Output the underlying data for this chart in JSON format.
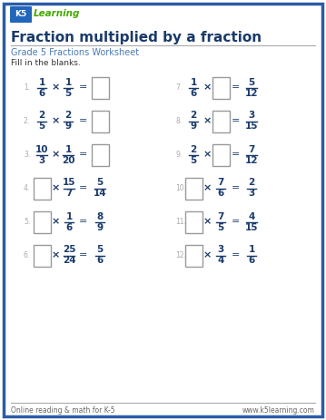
{
  "title": "Fraction multiplied by a fraction",
  "subtitle": "Grade 5 Fractions Worksheet",
  "instruction": "Fill in the blanks.",
  "border_color": "#2a5ca8",
  "title_color": "#1a3a6b",
  "subtitle_color": "#4a7ab5",
  "text_color": "#333333",
  "frac_color": "#1a3a6b",
  "box_color": "#999999",
  "footer_left": "Online reading & math for K-5",
  "footer_right": "www.k5learning.com",
  "problems": [
    {
      "num": "1",
      "col": 0,
      "row": 0,
      "expr": "frac_x_frac_eq_box",
      "n1": "1",
      "d1": "6",
      "n2": "1",
      "d2": "5"
    },
    {
      "num": "7",
      "col": 1,
      "row": 0,
      "expr": "frac_x_box_eq_frac",
      "n1": "1",
      "d1": "6",
      "nr": "5",
      "dr": "12"
    },
    {
      "num": "2",
      "col": 0,
      "row": 1,
      "expr": "frac_x_frac_eq_box",
      "n1": "2",
      "d1": "5",
      "n2": "2",
      "d2": "9"
    },
    {
      "num": "8",
      "col": 1,
      "row": 1,
      "expr": "frac_x_box_eq_frac",
      "n1": "2",
      "d1": "9",
      "nr": "3",
      "dr": "15"
    },
    {
      "num": "3",
      "col": 0,
      "row": 2,
      "expr": "frac_x_frac_eq_box",
      "n1": "10",
      "d1": "3",
      "n2": "1",
      "d2": "20"
    },
    {
      "num": "9",
      "col": 1,
      "row": 2,
      "expr": "frac_x_box_eq_frac",
      "n1": "2",
      "d1": "5",
      "nr": "7",
      "dr": "12"
    },
    {
      "num": "4",
      "col": 0,
      "row": 3,
      "expr": "box_x_frac_eq_frac",
      "n2": "15",
      "d2": "7",
      "nr": "5",
      "dr": "14"
    },
    {
      "num": "10",
      "col": 1,
      "row": 3,
      "expr": "box_x_frac_eq_frac",
      "n2": "7",
      "d2": "6",
      "nr": "2",
      "dr": "3"
    },
    {
      "num": "5",
      "col": 0,
      "row": 4,
      "expr": "box_x_frac_eq_frac",
      "n2": "1",
      "d2": "6",
      "nr": "8",
      "dr": "9"
    },
    {
      "num": "11",
      "col": 1,
      "row": 4,
      "expr": "box_x_frac_eq_frac",
      "n2": "7",
      "d2": "5",
      "nr": "4",
      "dr": "15"
    },
    {
      "num": "6",
      "col": 0,
      "row": 5,
      "expr": "box_x_frac_eq_frac",
      "n2": "25",
      "d2": "24",
      "nr": "5",
      "dr": "6"
    },
    {
      "num": "12",
      "col": 1,
      "row": 5,
      "expr": "box_x_frac_eq_frac",
      "n2": "3",
      "d2": "4",
      "nr": "1",
      "dr": "6"
    }
  ]
}
